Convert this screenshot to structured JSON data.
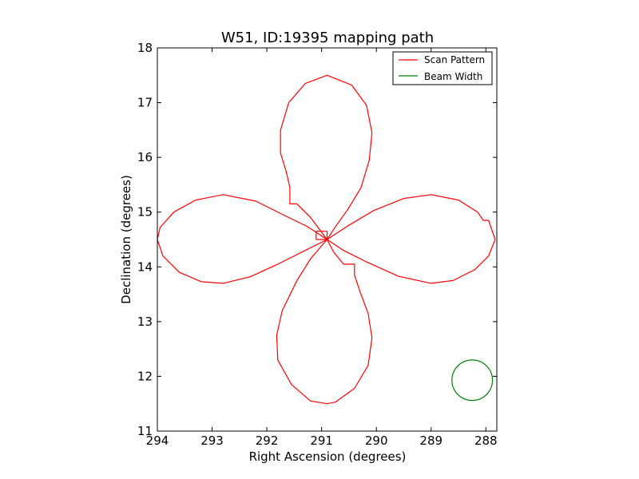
{
  "chart_data": {
    "type": "line",
    "title": "W51, ID:19395 mapping path",
    "xlabel": "Right Ascension (degrees)",
    "ylabel": "Declination (degrees)",
    "xlim": [
      294.0,
      287.8
    ],
    "ylim": [
      11,
      18
    ],
    "x_inverted": true,
    "xticks": [
      294,
      293,
      292,
      291,
      290,
      289,
      288
    ],
    "yticks": [
      11,
      12,
      13,
      14,
      15,
      16,
      17,
      18
    ],
    "grid": false,
    "legend_position": "top-right",
    "center": [
      290.9,
      14.5
    ],
    "series": [
      {
        "name": "Scan Pattern",
        "color": "#ff0000",
        "description": "four-petal rose",
        "petal_length_ra": 3.1,
        "petal_length_dec": 3.0,
        "points": [
          [
            290.9,
            14.5
          ],
          [
            290.75,
            14.73
          ],
          [
            290.52,
            15.05
          ],
          [
            290.28,
            15.45
          ],
          [
            290.13,
            15.95
          ],
          [
            290.08,
            16.45
          ],
          [
            290.18,
            16.95
          ],
          [
            290.45,
            17.32
          ],
          [
            290.9,
            17.5
          ],
          [
            291.3,
            17.35
          ],
          [
            291.6,
            17.0
          ],
          [
            291.75,
            16.5
          ],
          [
            291.75,
            16.08
          ],
          [
            291.65,
            15.75
          ],
          [
            291.58,
            15.45
          ],
          [
            291.58,
            15.15
          ],
          [
            291.45,
            15.15
          ],
          [
            291.2,
            14.9
          ],
          [
            290.9,
            14.5
          ],
          [
            290.55,
            14.73
          ],
          [
            290.05,
            15.03
          ],
          [
            289.5,
            15.25
          ],
          [
            289.0,
            15.32
          ],
          [
            288.5,
            15.22
          ],
          [
            288.15,
            15.0
          ],
          [
            288.05,
            14.85
          ],
          [
            287.95,
            14.85
          ],
          [
            287.83,
            14.5
          ],
          [
            287.95,
            14.2
          ],
          [
            288.2,
            13.95
          ],
          [
            288.6,
            13.75
          ],
          [
            289.0,
            13.7
          ],
          [
            289.6,
            13.83
          ],
          [
            290.2,
            14.1
          ],
          [
            290.6,
            14.3
          ],
          [
            290.9,
            14.5
          ],
          [
            290.78,
            14.27
          ],
          [
            290.6,
            14.05
          ],
          [
            290.4,
            14.05
          ],
          [
            290.4,
            13.85
          ],
          [
            290.3,
            13.55
          ],
          [
            290.15,
            13.15
          ],
          [
            290.08,
            12.7
          ],
          [
            290.15,
            12.2
          ],
          [
            290.4,
            11.78
          ],
          [
            290.75,
            11.53
          ],
          [
            290.9,
            11.5
          ],
          [
            291.2,
            11.55
          ],
          [
            291.55,
            11.85
          ],
          [
            291.8,
            12.3
          ],
          [
            291.82,
            12.75
          ],
          [
            291.72,
            13.2
          ],
          [
            291.45,
            13.75
          ],
          [
            291.2,
            14.15
          ],
          [
            290.9,
            14.5
          ],
          [
            291.3,
            14.3
          ],
          [
            291.8,
            14.05
          ],
          [
            292.3,
            13.82
          ],
          [
            292.8,
            13.7
          ],
          [
            293.2,
            13.73
          ],
          [
            293.6,
            13.9
          ],
          [
            293.9,
            14.2
          ],
          [
            294.0,
            14.5
          ],
          [
            293.95,
            14.72
          ],
          [
            293.7,
            15.0
          ],
          [
            293.3,
            15.22
          ],
          [
            292.8,
            15.32
          ],
          [
            292.2,
            15.2
          ],
          [
            291.7,
            14.95
          ],
          [
            291.25,
            14.73
          ],
          [
            290.9,
            14.5
          ],
          [
            290.9,
            14.65
          ],
          [
            291.1,
            14.65
          ],
          [
            291.1,
            14.5
          ],
          [
            290.9,
            14.5
          ]
        ]
      },
      {
        "name": "Beam Width",
        "color": "#008000",
        "description": "circle",
        "center": [
          288.25,
          11.93
        ],
        "radius_dec": 0.37
      }
    ]
  }
}
